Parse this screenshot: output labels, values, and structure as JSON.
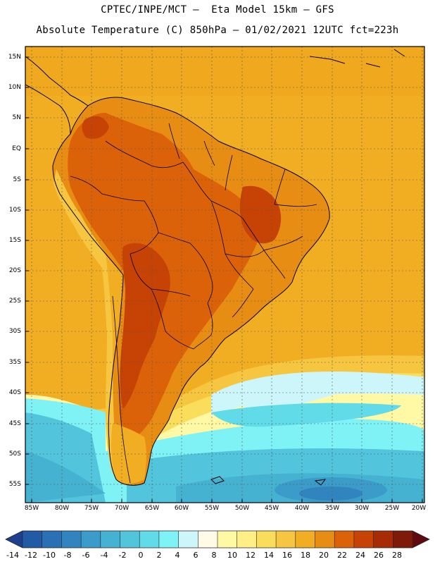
{
  "header": {
    "line1": "CPTEC/INPE/MCT –  Eta Model 15km – GFS",
    "line2": "Absolute Temperature (C) 850hPa – 01/02/2021 12UTC fct=223h"
  },
  "map": {
    "lat_labels": [
      "15N",
      "10N",
      "5N",
      "EQ",
      "5S",
      "10S",
      "15S",
      "20S",
      "25S",
      "30S",
      "35S",
      "40S",
      "45S",
      "50S",
      "55S"
    ],
    "lon_labels": [
      "85W",
      "80W",
      "75W",
      "70W",
      "65W",
      "60W",
      "55W",
      "50W",
      "45W",
      "40W",
      "35W",
      "30W",
      "25W",
      "20W"
    ]
  },
  "colorbar": {
    "labels": [
      "-14",
      "-12",
      "-10",
      "-8",
      "-6",
      "-4",
      "-2",
      "0",
      "2",
      "4",
      "6",
      "8",
      "10",
      "12",
      "14",
      "16",
      "18",
      "20",
      "22",
      "24",
      "26",
      "28"
    ],
    "colors": [
      "#1c3f8f",
      "#235aa6",
      "#2b6fb5",
      "#3284bf",
      "#3b9cc9",
      "#46b2d2",
      "#52c4dc",
      "#62dbe8",
      "#7ff2f6",
      "#cdf6fb",
      "#fffbe6",
      "#fff9a6",
      "#ffef84",
      "#fbdd5c",
      "#f6c640",
      "#f2ae22",
      "#e88d14",
      "#dc6209",
      "#c64205",
      "#a72c06",
      "#7f1a08",
      "#5f0a10"
    ]
  }
}
